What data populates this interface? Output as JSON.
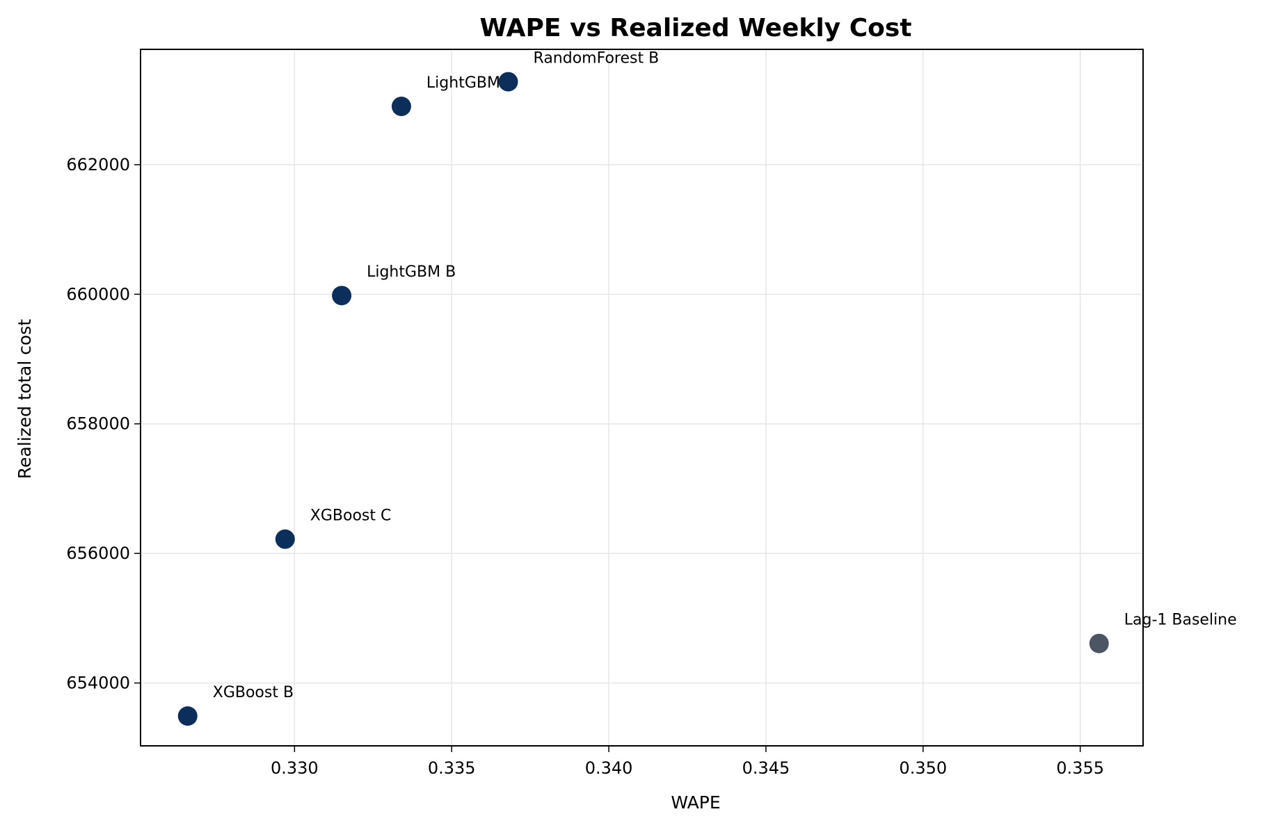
{
  "chart_data": {
    "type": "scatter",
    "title": "WAPE vs Realized Weekly Cost",
    "xlabel": "WAPE",
    "ylabel": "Realized total cost",
    "xlim": [
      0.3251,
      0.357
    ],
    "ylim": [
      653030,
      663780
    ],
    "xticks": [
      "0.330",
      "0.335",
      "0.340",
      "0.345",
      "0.350",
      "0.355"
    ],
    "yticks": [
      "654000",
      "656000",
      "658000",
      "660000",
      "662000"
    ],
    "grid": true,
    "points": [
      {
        "label": "XGBoost B",
        "x": 0.3266,
        "y": 653490,
        "color": "#0b2e5a"
      },
      {
        "label": "XGBoost C",
        "x": 0.3297,
        "y": 656220,
        "color": "#0b2e5a"
      },
      {
        "label": "LightGBM B",
        "x": 0.3315,
        "y": 659980,
        "color": "#0b2e5a"
      },
      {
        "label": "LightGBM C",
        "x": 0.3334,
        "y": 662900,
        "color": "#0b2e5a"
      },
      {
        "label": "RandomForest B",
        "x": 0.3368,
        "y": 663280,
        "color": "#0b2e5a"
      },
      {
        "label": "Lag-1 Baseline",
        "x": 0.3556,
        "y": 654610,
        "color": "#4b5563"
      }
    ]
  }
}
